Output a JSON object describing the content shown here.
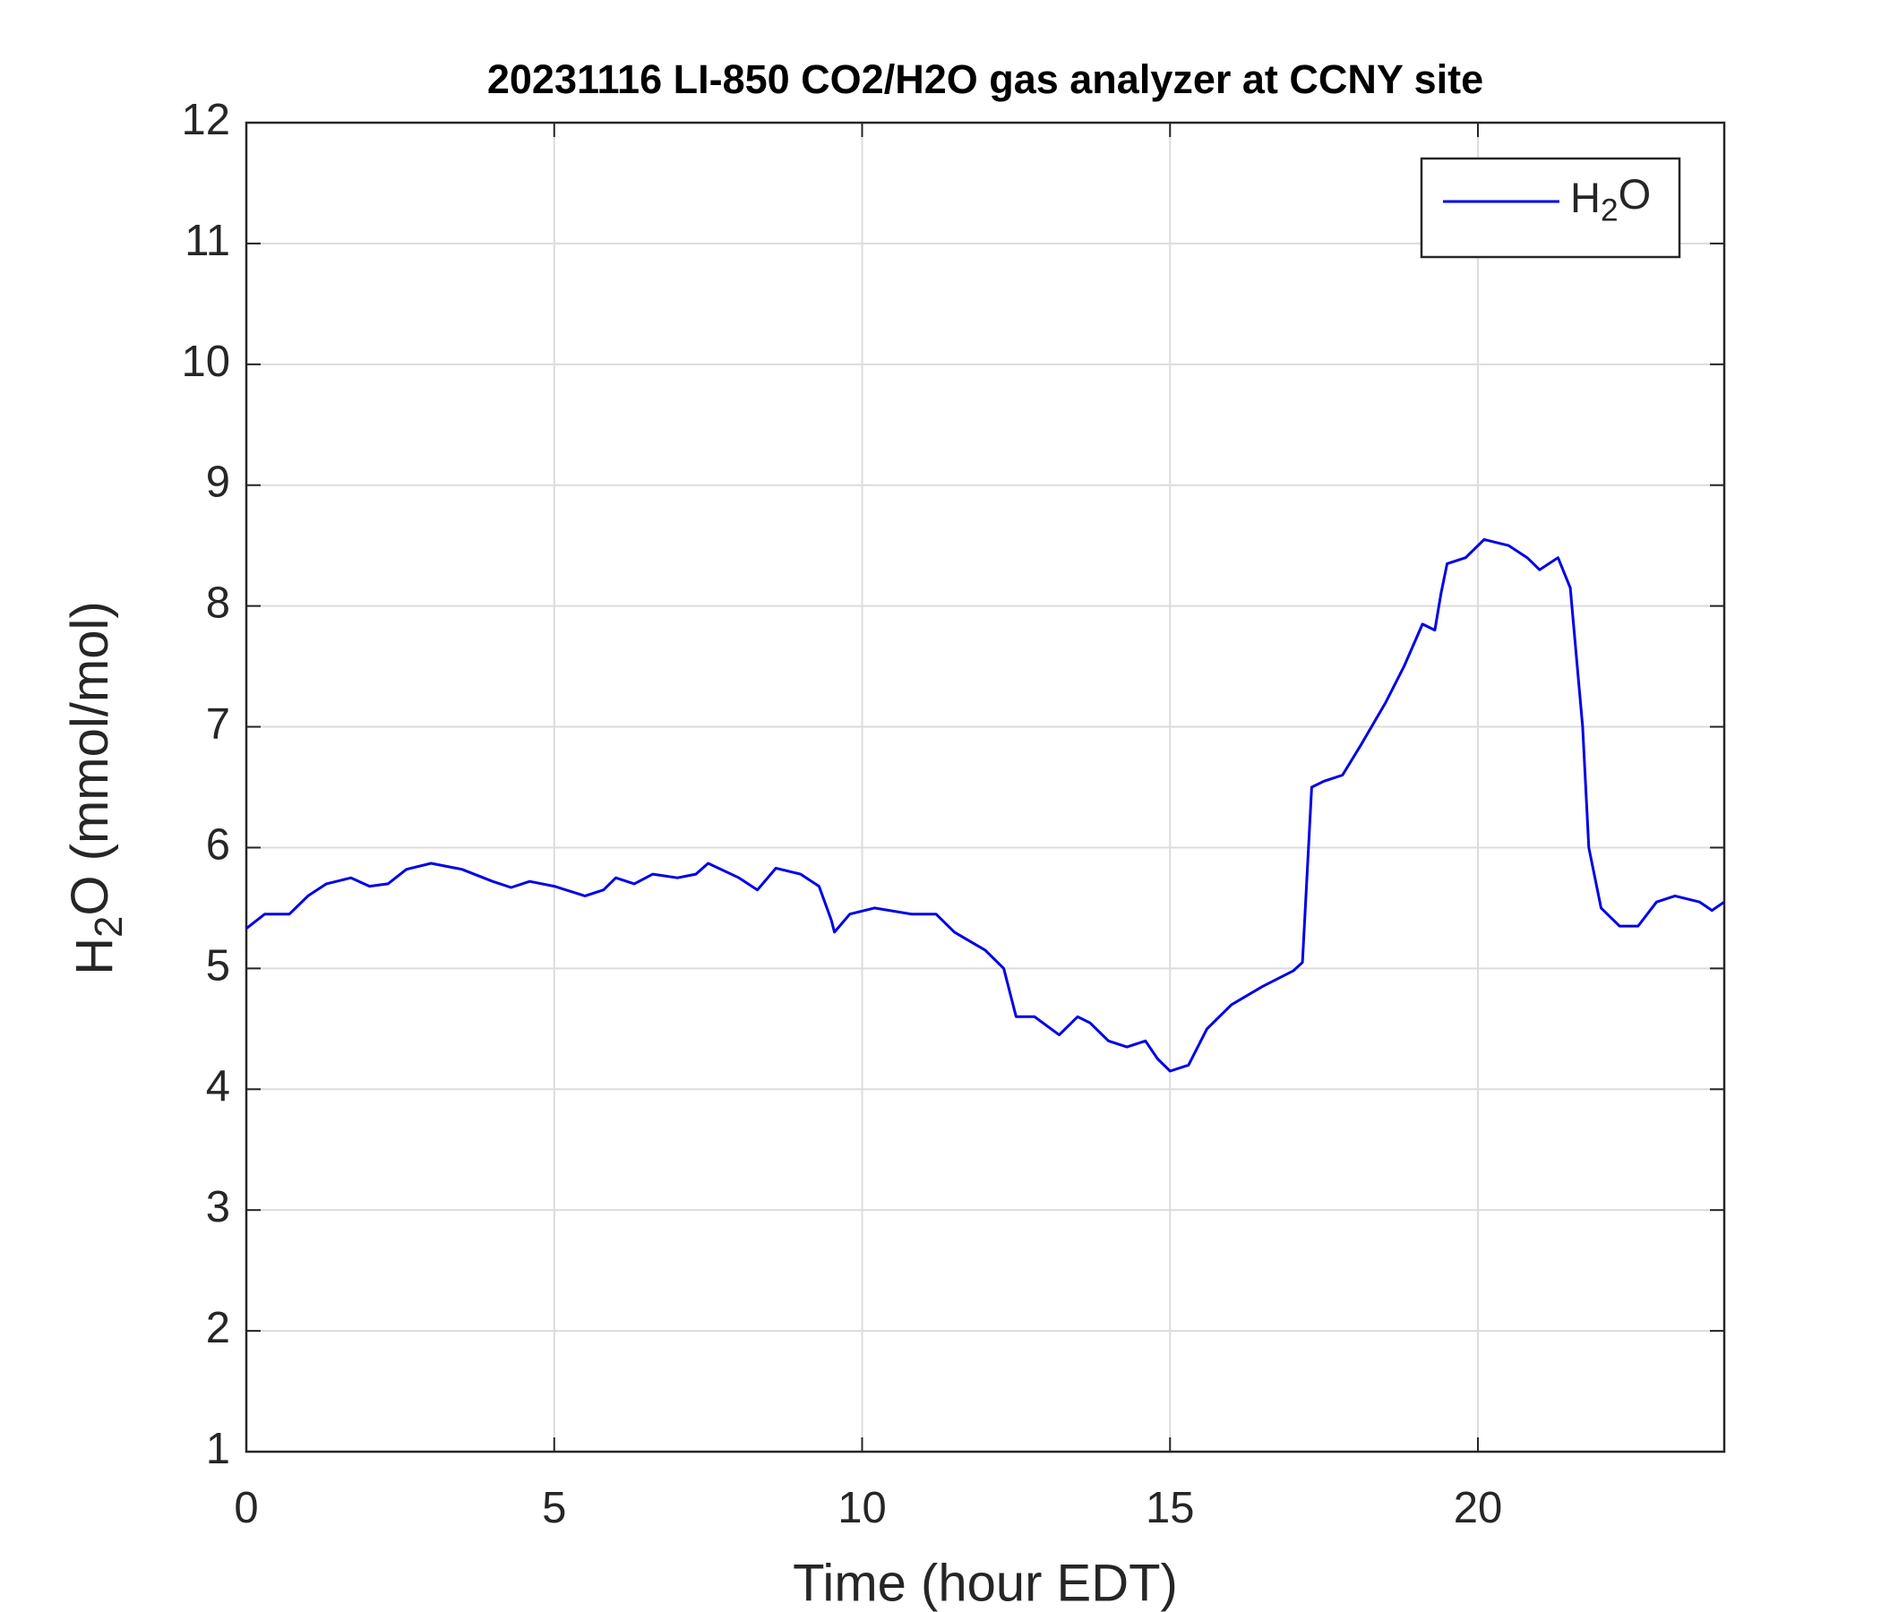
{
  "chart_data": {
    "type": "line",
    "title": "20231116 LI-850 CO2/H2O gas analyzer at CCNY site",
    "x_label": "Time (hour EDT)",
    "y_label": "H2O (mmol/mol)",
    "xlim": [
      0,
      24
    ],
    "xticks": [
      0,
      5,
      10,
      15,
      20
    ],
    "ylim": [
      1,
      12
    ],
    "yticks": [
      1,
      2,
      3,
      4,
      5,
      6,
      7,
      8,
      9,
      10,
      11,
      12
    ],
    "grid": true,
    "legend": "upper right",
    "x": [
      0,
      0.3,
      0.7,
      1.0,
      1.3,
      1.7,
      2.0,
      2.3,
      2.6,
      3.0,
      3.5,
      4.0,
      4.3,
      4.6,
      5.0,
      5.5,
      5.8,
      6.0,
      6.3,
      6.6,
      7.0,
      7.3,
      7.5,
      8.0,
      8.3,
      8.6,
      9.0,
      9.3,
      9.5,
      9.55,
      9.8,
      10.2,
      10.8,
      11.2,
      11.5,
      12.0,
      12.3,
      12.5,
      12.8,
      13.2,
      13.5,
      13.7,
      14.0,
      14.3,
      14.6,
      14.8,
      15.0,
      15.3,
      15.6,
      16.0,
      16.5,
      17.0,
      17.15,
      17.3,
      17.5,
      17.8,
      18.1,
      18.5,
      18.8,
      19.1,
      19.3,
      19.4,
      19.5,
      19.8,
      20.1,
      20.5,
      20.8,
      21.0,
      21.3,
      21.5,
      21.7,
      21.8,
      22.0,
      22.3,
      22.6,
      22.9,
      23.2,
      23.6,
      23.8,
      24.0
    ],
    "series": [
      {
        "name": "H2O",
        "color": "#0000e6",
        "values": [
          5.33,
          5.45,
          5.45,
          5.6,
          5.7,
          5.75,
          5.68,
          5.7,
          5.82,
          5.87,
          5.82,
          5.72,
          5.67,
          5.72,
          5.68,
          5.6,
          5.65,
          5.75,
          5.7,
          5.78,
          5.75,
          5.78,
          5.87,
          5.75,
          5.65,
          5.83,
          5.78,
          5.68,
          5.4,
          5.3,
          5.45,
          5.5,
          5.45,
          5.45,
          5.3,
          5.15,
          5.0,
          4.6,
          4.6,
          4.45,
          4.6,
          4.55,
          4.4,
          4.35,
          4.4,
          4.25,
          4.15,
          4.2,
          4.5,
          4.7,
          4.85,
          4.98,
          5.05,
          6.5,
          6.55,
          6.6,
          6.85,
          7.2,
          7.5,
          7.85,
          7.8,
          8.1,
          8.35,
          8.4,
          8.55,
          8.5,
          8.4,
          8.3,
          8.4,
          8.15,
          7.0,
          6.0,
          5.5,
          5.35,
          5.35,
          5.55,
          5.6,
          5.55,
          5.48,
          5.55
        ]
      }
    ]
  }
}
